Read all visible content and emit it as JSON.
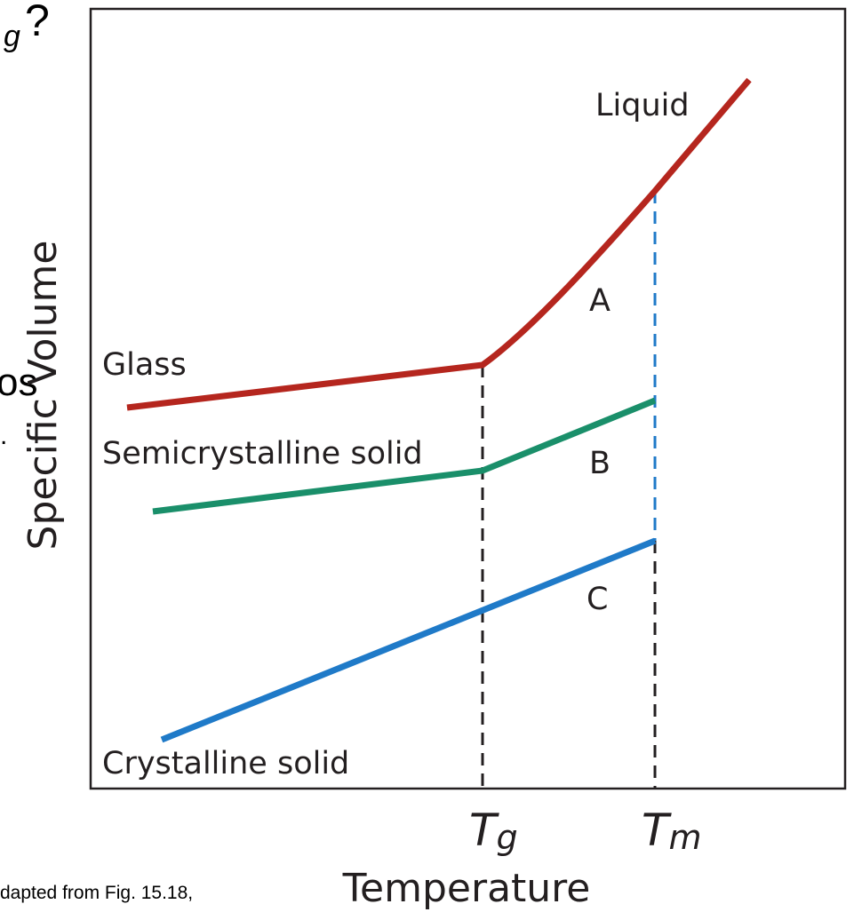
{
  "slide_fragments": {
    "top_subscript": "g",
    "top_mark": "?",
    "left_text": "os",
    "left_dot": ".",
    "caption": "dapted from Fig. 15.18,"
  },
  "diagram": {
    "y_axis_label": "Specific Volume",
    "x_axis_label": "Temperature",
    "x_markers": [
      {
        "symbol": "T",
        "subscript": "g"
      },
      {
        "symbol": "T",
        "subscript": "m"
      }
    ],
    "curves": [
      {
        "label": "Liquid",
        "region": "A"
      },
      {
        "label": "Glass"
      },
      {
        "label": "Semicrystalline solid",
        "region": "B"
      },
      {
        "label": "Crystalline solid",
        "region": "C"
      }
    ]
  }
}
